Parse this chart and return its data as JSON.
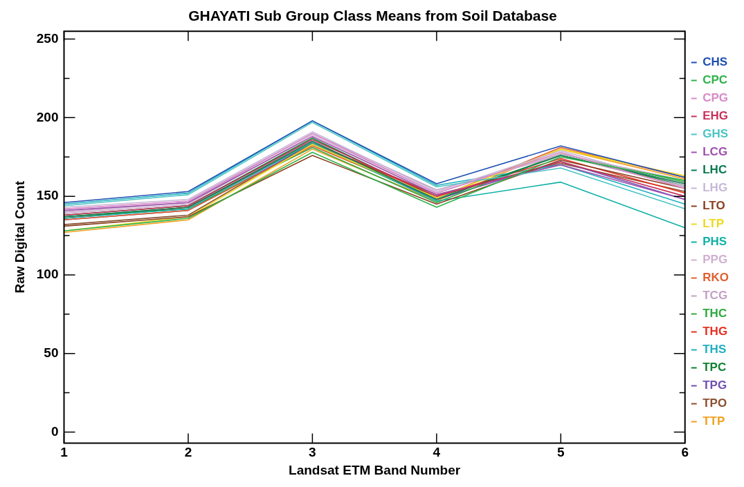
{
  "chart_data": {
    "type": "line",
    "title": "GHAYATI Sub Group Class Means from Soil Database",
    "xlabel": "Landsat ETM Band Number",
    "ylabel": "Raw Digital Count",
    "x": [
      1,
      2,
      3,
      4,
      5,
      6
    ],
    "xlim": [
      1,
      6
    ],
    "xticks": [
      1,
      2,
      3,
      4,
      5,
      6
    ],
    "ylim": [
      -7,
      255
    ],
    "yticks": [
      0,
      {
        "value": 25,
        "label": null
      },
      50,
      {
        "value": 75,
        "label": null
      },
      100,
      {
        "value": 125,
        "label": null
      },
      150,
      {
        "value": 175,
        "label": null
      },
      200,
      {
        "value": 225,
        "label": null
      },
      250
    ],
    "grid": false,
    "legend": "right",
    "marker": "none",
    "line_style": "solid",
    "series": [
      {
        "name": "CHS",
        "color": "#1f4fb4",
        "values": [
          146,
          153,
          198,
          158,
          182,
          162
        ]
      },
      {
        "name": "CPC",
        "color": "#2db34a",
        "values": [
          128,
          136,
          178,
          143,
          175,
          160
        ]
      },
      {
        "name": "CPG",
        "color": "#d98ac8",
        "values": [
          142,
          147,
          190,
          152,
          178,
          155
        ]
      },
      {
        "name": "EHG",
        "color": "#c8305a",
        "values": [
          138,
          144,
          186,
          150,
          172,
          150
        ]
      },
      {
        "name": "GHS",
        "color": "#4cc4c4",
        "values": [
          144,
          151,
          197,
          156,
          168,
          142
        ]
      },
      {
        "name": "LCG",
        "color": "#a050b0",
        "values": [
          141,
          146,
          188,
          151,
          170,
          148
        ]
      },
      {
        "name": "LHC",
        "color": "#0a7a50",
        "values": [
          137,
          143,
          185,
          148,
          176,
          158
        ]
      },
      {
        "name": "LHG",
        "color": "#c8b8d8",
        "values": [
          143,
          148,
          191,
          153,
          179,
          157
        ]
      },
      {
        "name": "LTO",
        "color": "#8b4020",
        "values": [
          131,
          137,
          176,
          145,
          173,
          155
        ]
      },
      {
        "name": "LTP",
        "color": "#f0d820",
        "values": [
          128,
          137,
          183,
          149,
          180,
          163
        ]
      },
      {
        "name": "PHS",
        "color": "#10b0a8",
        "values": [
          136,
          142,
          184,
          147,
          159,
          130
        ]
      },
      {
        "name": "PPG",
        "color": "#d0b0d0",
        "values": [
          139,
          145,
          189,
          152,
          177,
          160
        ]
      },
      {
        "name": "RKO",
        "color": "#e06030",
        "values": [
          135,
          141,
          182,
          149,
          181,
          162
        ]
      },
      {
        "name": "TCG",
        "color": "#c4a0c4",
        "values": [
          140,
          146,
          190,
          154,
          176,
          156
        ]
      },
      {
        "name": "THC",
        "color": "#30a840",
        "values": [
          137,
          142,
          181,
          146,
          177,
          159
        ]
      },
      {
        "name": "THG",
        "color": "#e83020",
        "values": [
          136,
          143,
          184,
          150,
          174,
          152
        ]
      },
      {
        "name": "THS",
        "color": "#20b0c0",
        "values": [
          145,
          152,
          198,
          157,
          170,
          145
        ]
      },
      {
        "name": "TPC",
        "color": "#108030",
        "values": [
          138,
          144,
          187,
          149,
          176,
          157
        ]
      },
      {
        "name": "TPG",
        "color": "#7050b0",
        "values": [
          135,
          141,
          183,
          148,
          172,
          148
        ]
      },
      {
        "name": "TPO",
        "color": "#8b5030",
        "values": [
          132,
          138,
          184,
          151,
          171,
          153
        ]
      },
      {
        "name": "TTP",
        "color": "#f0a020",
        "values": [
          127,
          135,
          180,
          147,
          180,
          161
        ]
      }
    ]
  }
}
